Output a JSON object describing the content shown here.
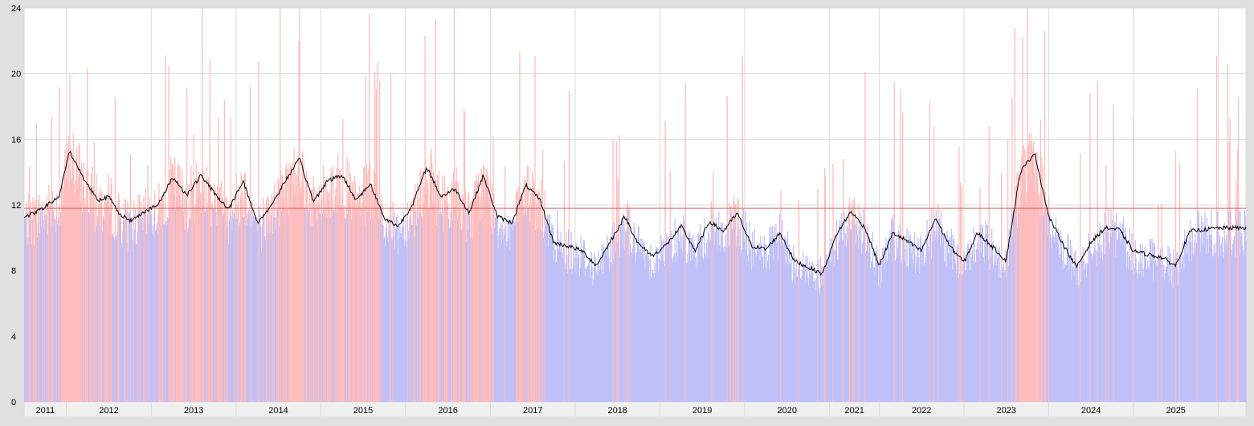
{
  "chart_data": {
    "type": "bar",
    "description_of_series": "daily bars with moving average line and threshold line",
    "x": {
      "start": "2010-12-01",
      "end": "2025-04-30",
      "tick_labels": [
        "2011",
        "2012",
        "2013",
        "2014",
        "2015",
        "2016",
        "2017",
        "2018",
        "2019",
        "2020",
        "2021",
        "2022",
        "2023",
        "2024",
        "2025"
      ],
      "boundaries": [
        "2010-12-01",
        "2011-06-01",
        "2012-06-01",
        "2013-06-01",
        "2014-06-01",
        "2015-06-01",
        "2016-06-01",
        "2017-06-01",
        "2018-06-01",
        "2019-06-01",
        "2020-06-01",
        "2021-01-01",
        "2022-01-01",
        "2023-01-01",
        "2024-01-01",
        "2025-01-01",
        "2025-04-30"
      ]
    },
    "yticks": [
      "0",
      "4",
      "8",
      "12",
      "16",
      "20",
      "24"
    ],
    "ylim": [
      0,
      24
    ],
    "grid": true,
    "threshold": 11.8,
    "colors": {
      "below": "#c0c0f8",
      "above": "#ffbcbc",
      "ma_line": "#000000",
      "threshold_line": "#e06060",
      "grid": "#dcdcdc",
      "plot_bg": "#ffffff",
      "frame": "#e0e0e0"
    },
    "moving_average": [
      [
        "2010-12-01",
        11.3
      ],
      [
        "2011-01-15",
        11.5
      ],
      [
        "2011-03-01",
        11.9
      ],
      [
        "2011-05-01",
        12.5
      ],
      [
        "2011-06-15",
        15.3
      ],
      [
        "2011-08-15",
        13.6
      ],
      [
        "2011-10-15",
        12.3
      ],
      [
        "2011-12-01",
        12.5
      ],
      [
        "2012-01-15",
        11.5
      ],
      [
        "2012-03-01",
        11.0
      ],
      [
        "2012-05-01",
        11.6
      ],
      [
        "2012-07-01",
        12.0
      ],
      [
        "2012-09-01",
        13.7
      ],
      [
        "2012-11-01",
        12.6
      ],
      [
        "2013-01-01",
        13.8
      ],
      [
        "2013-03-01",
        12.7
      ],
      [
        "2013-05-01",
        11.7
      ],
      [
        "2013-07-01",
        13.5
      ],
      [
        "2013-09-01",
        10.9
      ],
      [
        "2013-11-01",
        12.0
      ],
      [
        "2014-01-01",
        13.5
      ],
      [
        "2014-03-01",
        14.8
      ],
      [
        "2014-05-01",
        12.2
      ],
      [
        "2014-07-01",
        13.5
      ],
      [
        "2014-09-01",
        13.8
      ],
      [
        "2014-11-01",
        12.3
      ],
      [
        "2015-01-01",
        13.3
      ],
      [
        "2015-03-01",
        11.2
      ],
      [
        "2015-05-01",
        10.7
      ],
      [
        "2015-07-01",
        12.0
      ],
      [
        "2015-09-01",
        14.3
      ],
      [
        "2015-11-01",
        12.5
      ],
      [
        "2016-01-01",
        13.0
      ],
      [
        "2016-03-01",
        11.5
      ],
      [
        "2016-05-01",
        13.8
      ],
      [
        "2016-07-01",
        11.3
      ],
      [
        "2016-09-01",
        10.9
      ],
      [
        "2016-11-01",
        13.2
      ],
      [
        "2017-01-01",
        12.3
      ],
      [
        "2017-03-01",
        9.7
      ],
      [
        "2017-05-01",
        9.5
      ],
      [
        "2017-07-01",
        9.2
      ],
      [
        "2017-09-01",
        8.3
      ],
      [
        "2017-11-01",
        9.8
      ],
      [
        "2018-01-01",
        11.3
      ],
      [
        "2018-03-01",
        9.6
      ],
      [
        "2018-05-01",
        8.9
      ],
      [
        "2018-07-01",
        9.6
      ],
      [
        "2018-09-01",
        10.7
      ],
      [
        "2018-11-01",
        9.2
      ],
      [
        "2019-01-01",
        11.0
      ],
      [
        "2019-03-01",
        10.4
      ],
      [
        "2019-05-01",
        11.5
      ],
      [
        "2019-07-01",
        9.5
      ],
      [
        "2019-09-01",
        9.3
      ],
      [
        "2019-11-01",
        10.3
      ],
      [
        "2020-01-01",
        8.6
      ],
      [
        "2020-03-01",
        8.2
      ],
      [
        "2020-05-01",
        7.8
      ],
      [
        "2020-07-01",
        10.2
      ],
      [
        "2020-09-01",
        11.6
      ],
      [
        "2020-11-01",
        10.6
      ],
      [
        "2021-01-01",
        8.3
      ],
      [
        "2021-03-01",
        10.3
      ],
      [
        "2021-05-01",
        9.8
      ],
      [
        "2021-07-01",
        9.2
      ],
      [
        "2021-09-01",
        11.2
      ],
      [
        "2021-11-01",
        9.5
      ],
      [
        "2022-01-01",
        8.5
      ],
      [
        "2022-03-01",
        10.3
      ],
      [
        "2022-05-01",
        9.5
      ],
      [
        "2022-07-01",
        8.6
      ],
      [
        "2022-09-01",
        14.0
      ],
      [
        "2022-11-01",
        15.2
      ],
      [
        "2023-01-01",
        11.3
      ],
      [
        "2023-03-01",
        9.7
      ],
      [
        "2023-05-01",
        8.2
      ],
      [
        "2023-07-01",
        9.7
      ],
      [
        "2023-09-01",
        10.6
      ],
      [
        "2023-11-01",
        10.5
      ],
      [
        "2024-01-01",
        9.2
      ],
      [
        "2024-03-01",
        9.0
      ],
      [
        "2024-05-01",
        8.8
      ],
      [
        "2024-07-01",
        8.3
      ],
      [
        "2024-09-01",
        10.4
      ],
      [
        "2025-01-01",
        10.6
      ],
      [
        "2025-04-30",
        10.6
      ]
    ]
  }
}
